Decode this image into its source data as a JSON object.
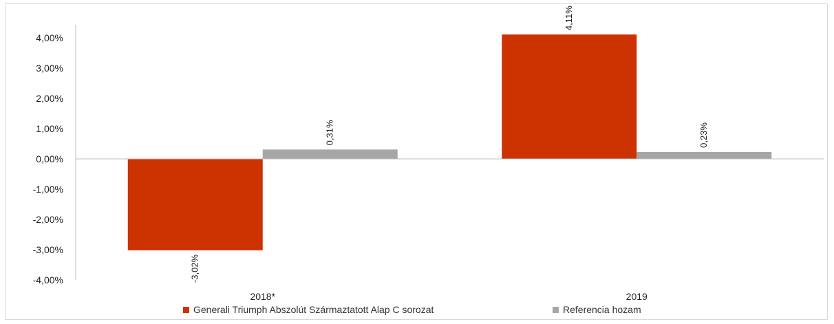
{
  "chart_data": {
    "type": "bar",
    "categories": [
      "2018*",
      "2019"
    ],
    "series": [
      {
        "name": "Generali Triumph Abszolút Származtatott Alap C sorozat",
        "values": [
          -3.02,
          4.11
        ],
        "labels": [
          "-3,02%",
          "4,11%"
        ],
        "color": "#cc3300"
      },
      {
        "name": "Referencia hozam",
        "values": [
          0.31,
          0.23
        ],
        "labels": [
          "0,31%",
          "0,23%"
        ],
        "color": "#a6a6a6"
      }
    ],
    "ylim": [
      -4,
      4
    ],
    "yticks": [
      4,
      3,
      2,
      1,
      0,
      -1,
      -2,
      -3,
      -4
    ],
    "ytick_labels": [
      "4,00%",
      "3,00%",
      "2,00%",
      "1,00%",
      "0,00%",
      "-1,00%",
      "-2,00%",
      "-3,00%",
      "-4,00%"
    ],
    "grid": false,
    "legend_position": "bottom"
  }
}
